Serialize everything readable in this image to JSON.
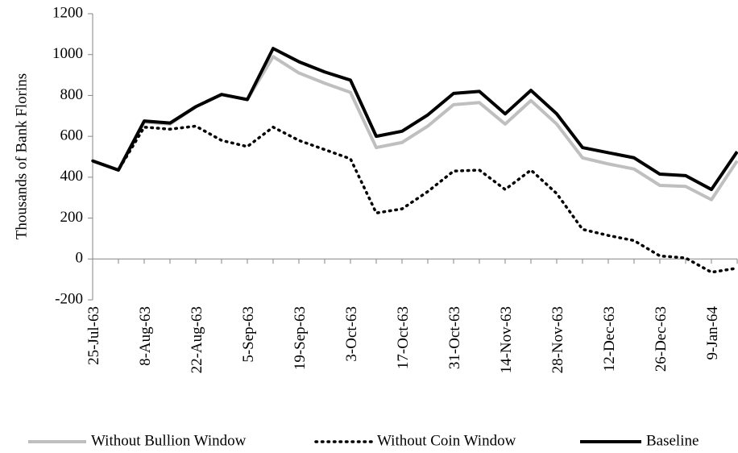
{
  "chart_data": {
    "type": "line",
    "y_label": "Thousands of Bank Florins",
    "categories": [
      "25-Jul-63",
      null,
      "8-Aug-63",
      null,
      "22-Aug-63",
      null,
      "5-Sep-63",
      null,
      "19-Sep-63",
      null,
      "3-Oct-63",
      null,
      "17-Oct-63",
      null,
      "31-Oct-63",
      null,
      "14-Nov-63",
      null,
      "28-Nov-63",
      null,
      "12-Dec-63",
      null,
      "26-Dec-63",
      null,
      "9-Jan-64",
      null
    ],
    "series": [
      {
        "name": "Without Bullion Window",
        "color": "#bfbfbf",
        "line_style": "solid",
        "values": [
          480,
          435,
          670,
          660,
          745,
          805,
          780,
          990,
          910,
          860,
          815,
          545,
          570,
          650,
          755,
          765,
          660,
          775,
          660,
          495,
          465,
          440,
          360,
          355,
          290,
          480
        ]
      },
      {
        "name": "Without Coin Window",
        "color": "#000000",
        "line_style": "dotted",
        "values": [
          480,
          435,
          645,
          635,
          650,
          580,
          550,
          645,
          580,
          535,
          490,
          225,
          245,
          330,
          430,
          435,
          340,
          435,
          320,
          145,
          115,
          90,
          15,
          5,
          -65,
          -45
        ]
      },
      {
        "name": "Baseline",
        "color": "#000000",
        "line_style": "solid",
        "values": [
          480,
          435,
          675,
          665,
          745,
          805,
          780,
          1030,
          965,
          915,
          875,
          600,
          625,
          705,
          810,
          820,
          710,
          825,
          710,
          545,
          520,
          495,
          415,
          408,
          340,
          525
        ]
      }
    ],
    "ylim": [
      -200,
      1200
    ],
    "yticks": [
      -200,
      0,
      200,
      400,
      600,
      800,
      1000,
      1200
    ],
    "grid": false,
    "legend": "bottom"
  }
}
